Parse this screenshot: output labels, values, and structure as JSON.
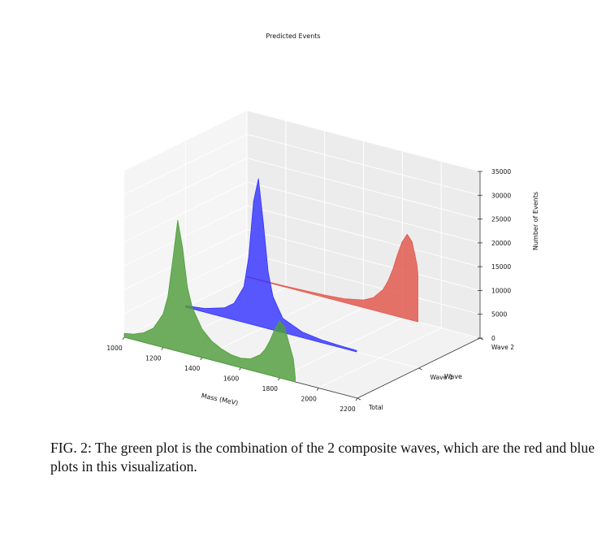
{
  "chart_data": {
    "type": "area",
    "projection": "3d",
    "title": "Predicted Events",
    "xlabel": "Mass (MeV)",
    "ylabel": "Wave",
    "zlabel": "Number of Events",
    "xlim": [
      1000,
      2200
    ],
    "zlim": [
      0,
      35000
    ],
    "x_ticks": [
      "1000",
      "1200",
      "1400",
      "1600",
      "1800",
      "2000",
      "2200"
    ],
    "y_ticks": [
      "Total",
      "Wave 1",
      "Wave 2"
    ],
    "z_ticks": [
      "0",
      "5000",
      "10000",
      "15000",
      "20000",
      "25000",
      "30000",
      "35000"
    ],
    "grid": true,
    "series": [
      {
        "name": "Total",
        "color": "#4f9e3c",
        "x": [
          1000,
          1050,
          1100,
          1150,
          1200,
          1225,
          1250,
          1275,
          1300,
          1325,
          1350,
          1400,
          1450,
          1500,
          1550,
          1600,
          1650,
          1700,
          1725,
          1750,
          1775,
          1800,
          1825,
          1850,
          1870,
          1880
        ],
        "values": [
          800,
          1200,
          2000,
          3500,
          7000,
          11000,
          19000,
          27500,
          22000,
          14000,
          10000,
          6000,
          4000,
          2900,
          2200,
          2000,
          2400,
          3800,
          5200,
          7300,
          10000,
          12000,
          11000,
          7500,
          4800,
          1000
        ]
      },
      {
        "name": "Wave 1",
        "color": "#3434ff",
        "x": [
          1000,
          1100,
          1200,
          1250,
          1300,
          1325,
          1350,
          1375,
          1400,
          1425,
          1450,
          1500,
          1600,
          1700,
          1800,
          1880
        ],
        "values": [
          300,
          800,
          2000,
          3500,
          7500,
          14000,
          26000,
          31000,
          22000,
          12000,
          7000,
          3000,
          1200,
          600,
          400,
          300
        ]
      },
      {
        "name": "Wave 2",
        "color": "#e2564a",
        "x": [
          1000,
          1200,
          1400,
          1500,
          1600,
          1650,
          1700,
          1725,
          1750,
          1775,
          1800,
          1825,
          1850,
          1875,
          1880
        ],
        "values": [
          100,
          200,
          500,
          800,
          1600,
          2600,
          4800,
          6800,
          9500,
          13000,
          16000,
          17800,
          16500,
          12000,
          10000
        ]
      }
    ]
  },
  "caption": "FIG. 2: The green plot is the combination of the 2 composite waves, which are the red and blue plots in this visualization."
}
